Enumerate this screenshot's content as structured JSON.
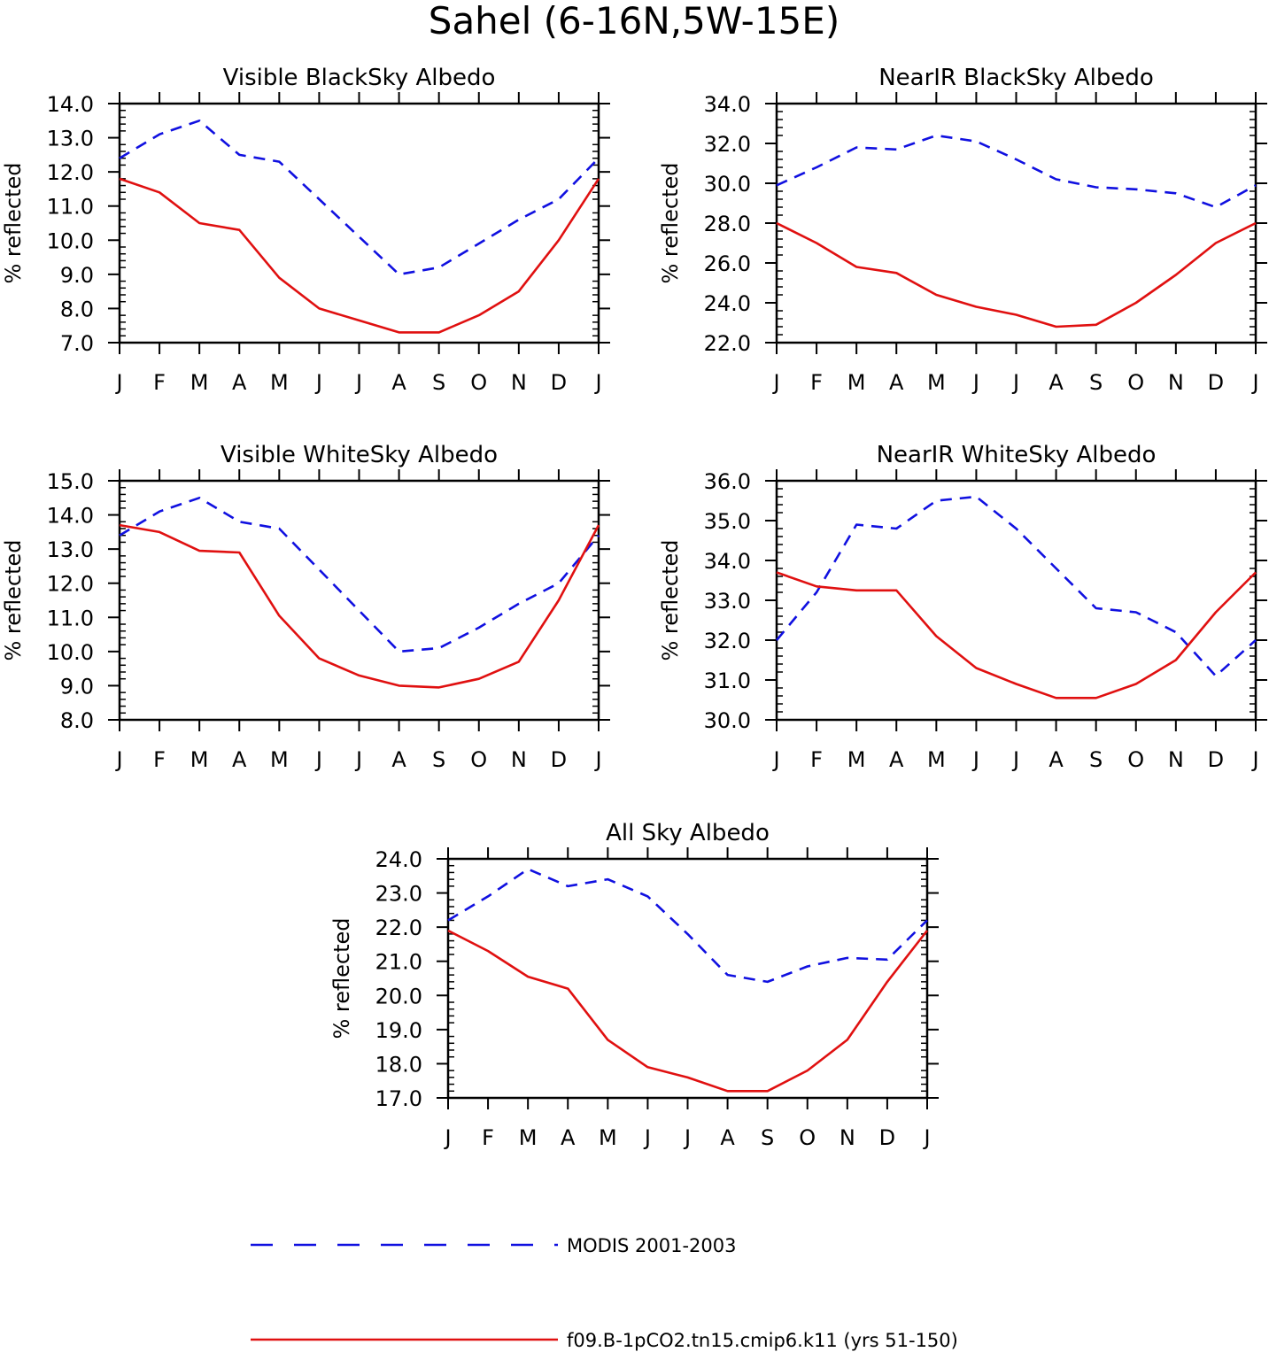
{
  "figure": {
    "title": "Sahel (6-16N,5W-15E)"
  },
  "colors": {
    "modis": "#1010e0",
    "model": "#e01010",
    "axes": "#000000"
  },
  "legend": [
    {
      "label": "MODIS 2001-2003",
      "style": "dashed",
      "color": "#1010e0"
    },
    {
      "label": "f09.B-1pCO2.tn15.cmip6.k11 (yrs 51-150)",
      "style": "solid",
      "color": "#e01010"
    }
  ],
  "chart_data": [
    {
      "type": "line",
      "title": "Visible BlackSky Albedo",
      "ylabel": "% reflected",
      "ylim": [
        7.0,
        14.0
      ],
      "yticks": [
        "7.0",
        "8.0",
        "9.0",
        "10.0",
        "11.0",
        "12.0",
        "13.0",
        "14.0"
      ],
      "categories": [
        "J",
        "F",
        "M",
        "A",
        "M",
        "J",
        "J",
        "A",
        "S",
        "O",
        "N",
        "D",
        "J"
      ],
      "series": [
        {
          "name": "MODIS 2001-2003",
          "values": [
            12.4,
            13.1,
            13.5,
            12.5,
            12.3,
            11.2,
            10.1,
            9.0,
            9.2,
            9.9,
            10.6,
            11.2,
            12.4
          ]
        },
        {
          "name": "f09.B-1pCO2.tn15.cmip6.k11 (yrs 51-150)",
          "values": [
            11.8,
            11.4,
            10.5,
            10.3,
            8.9,
            8.0,
            7.65,
            7.3,
            7.3,
            7.8,
            8.5,
            10.0,
            11.8
          ]
        }
      ]
    },
    {
      "type": "line",
      "title": "NearIR BlackSky Albedo",
      "ylabel": "% reflected",
      "ylim": [
        22.0,
        34.0
      ],
      "yticks": [
        "22.0",
        "24.0",
        "26.0",
        "28.0",
        "30.0",
        "32.0",
        "34.0"
      ],
      "categories": [
        "J",
        "F",
        "M",
        "A",
        "M",
        "J",
        "J",
        "A",
        "S",
        "O",
        "N",
        "D",
        "J"
      ],
      "series": [
        {
          "name": "MODIS 2001-2003",
          "values": [
            29.9,
            30.8,
            31.8,
            31.7,
            32.4,
            32.1,
            31.2,
            30.2,
            29.8,
            29.7,
            29.5,
            28.8,
            29.9
          ]
        },
        {
          "name": "f09.B-1pCO2.tn15.cmip6.k11 (yrs 51-150)",
          "values": [
            28.0,
            27.0,
            25.8,
            25.5,
            24.4,
            23.8,
            23.4,
            22.8,
            22.9,
            24.0,
            25.4,
            27.0,
            28.0
          ]
        }
      ]
    },
    {
      "type": "line",
      "title": "Visible WhiteSky Albedo",
      "ylabel": "% reflected",
      "ylim": [
        8.0,
        15.0
      ],
      "yticks": [
        "8.0",
        "9.0",
        "10.0",
        "11.0",
        "12.0",
        "13.0",
        "14.0",
        "15.0"
      ],
      "categories": [
        "J",
        "F",
        "M",
        "A",
        "M",
        "J",
        "J",
        "A",
        "S",
        "O",
        "N",
        "D",
        "J"
      ],
      "series": [
        {
          "name": "MODIS 2001-2003",
          "values": [
            13.4,
            14.1,
            14.5,
            13.8,
            13.6,
            12.4,
            11.2,
            10.0,
            10.1,
            10.7,
            11.4,
            12.0,
            13.4
          ]
        },
        {
          "name": "f09.B-1pCO2.tn15.cmip6.k11 (yrs 51-150)",
          "values": [
            13.7,
            13.5,
            12.95,
            12.9,
            11.05,
            9.8,
            9.3,
            9.0,
            8.95,
            9.2,
            9.7,
            11.5,
            13.7
          ]
        }
      ]
    },
    {
      "type": "line",
      "title": "NearIR WhiteSky Albedo",
      "ylabel": "% reflected",
      "ylim": [
        30.0,
        36.0
      ],
      "yticks": [
        "30.0",
        "31.0",
        "32.0",
        "33.0",
        "34.0",
        "35.0",
        "36.0"
      ],
      "categories": [
        "J",
        "F",
        "M",
        "A",
        "M",
        "J",
        "J",
        "A",
        "S",
        "O",
        "N",
        "D",
        "J"
      ],
      "series": [
        {
          "name": "MODIS 2001-2003",
          "values": [
            32.0,
            33.2,
            34.9,
            34.8,
            35.5,
            35.6,
            34.8,
            33.8,
            32.8,
            32.7,
            32.2,
            31.1,
            32.0
          ]
        },
        {
          "name": "f09.B-1pCO2.tn15.cmip6.k11 (yrs 51-150)",
          "values": [
            33.7,
            33.35,
            33.25,
            33.25,
            32.1,
            31.3,
            30.9,
            30.55,
            30.55,
            30.9,
            31.5,
            32.7,
            33.7
          ]
        }
      ]
    },
    {
      "type": "line",
      "title": "All Sky Albedo",
      "ylabel": "% reflected",
      "ylim": [
        17.0,
        24.0
      ],
      "yticks": [
        "17.0",
        "18.0",
        "19.0",
        "20.0",
        "21.0",
        "22.0",
        "23.0",
        "24.0"
      ],
      "categories": [
        "J",
        "F",
        "M",
        "A",
        "M",
        "J",
        "J",
        "A",
        "S",
        "O",
        "N",
        "D",
        "J"
      ],
      "series": [
        {
          "name": "MODIS 2001-2003",
          "values": [
            22.2,
            22.9,
            23.7,
            23.2,
            23.4,
            22.9,
            21.8,
            20.6,
            20.4,
            20.85,
            21.1,
            21.05,
            22.2
          ]
        },
        {
          "name": "f09.B-1pCO2.tn15.cmip6.k11 (yrs 51-150)",
          "values": [
            21.9,
            21.3,
            20.55,
            20.2,
            18.7,
            17.9,
            17.6,
            17.2,
            17.2,
            17.8,
            18.7,
            20.4,
            21.9
          ]
        }
      ]
    }
  ]
}
